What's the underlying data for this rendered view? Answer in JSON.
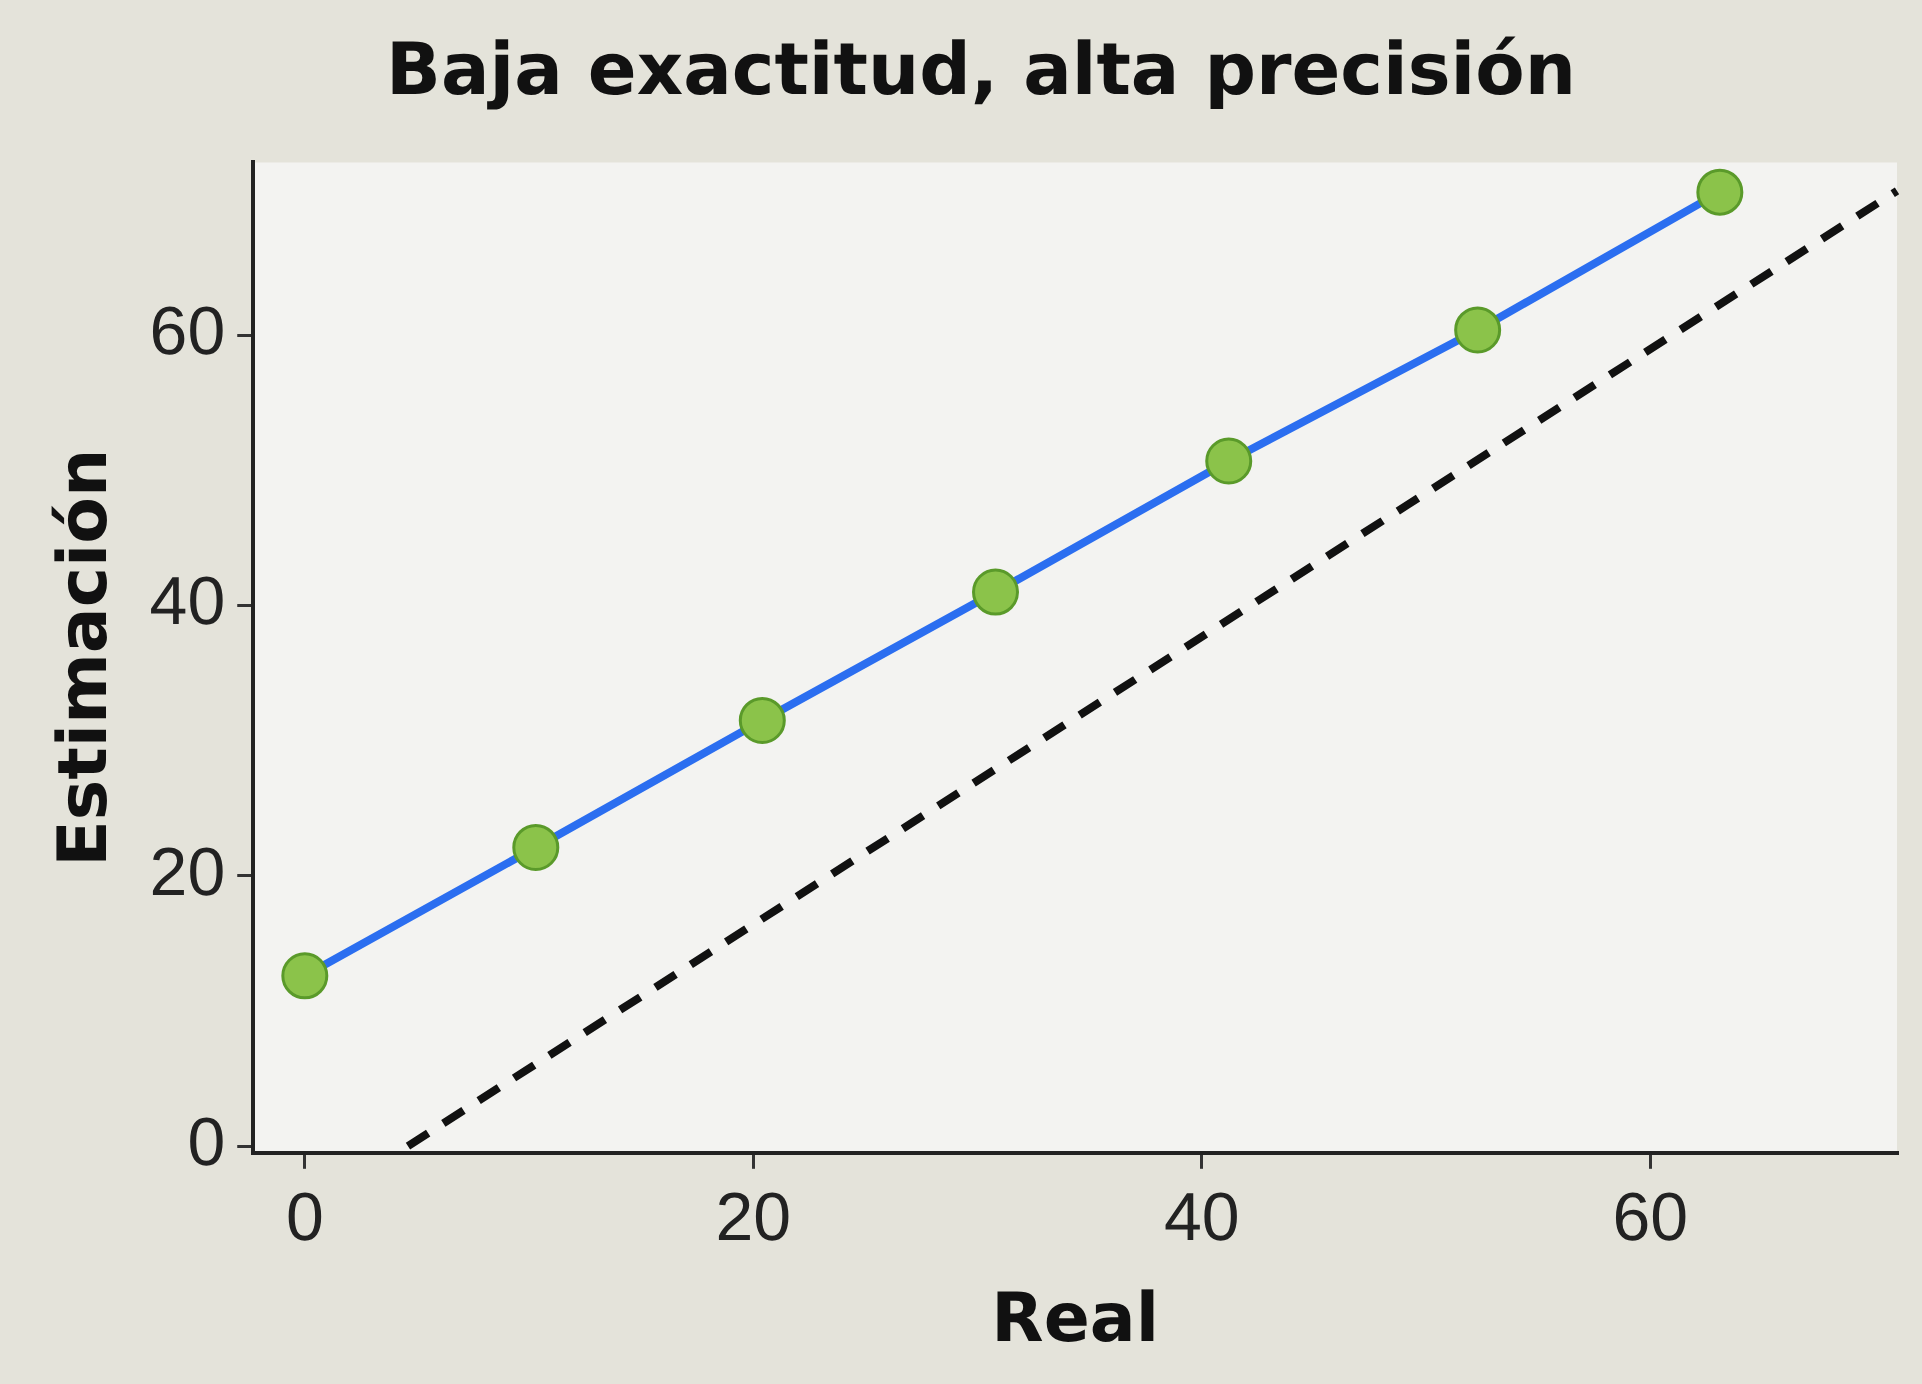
{
  "chart_data": {
    "type": "scatter",
    "title": "Baja exactitud, alta precisión",
    "xlabel": "Real",
    "ylabel": "Estimación",
    "series": [
      {
        "type": "line",
        "color": "#2b6ef0",
        "colors": [
          "#8bc34a",
          "#8bc34a",
          "#8bc34a",
          "#8bc34a",
          "#8bc34a",
          "#8bc34a",
          "#8bc34a"
        ],
        "marker": "circle",
        "line_style": "solid",
        "x": [
          0,
          10.3,
          20.4,
          30.8,
          41.2,
          52.3,
          63.1
        ],
        "values": [
          12.6,
          22.1,
          31.5,
          41.0,
          50.7,
          60.4,
          70.6
        ]
      },
      {
        "type": "line",
        "color": "#111111",
        "marker": "none",
        "line_style": "dashed",
        "x": [
          4.6,
          71
        ],
        "values": [
          0,
          70.7
        ]
      }
    ],
    "xlim": [
      -2.3,
      71
    ],
    "ylim": [
      -0.5,
      72.8
    ],
    "xticks": [
      0,
      20,
      40,
      60
    ],
    "yticks": [
      0,
      20,
      40,
      60
    ],
    "grid": false,
    "legend": false
  }
}
